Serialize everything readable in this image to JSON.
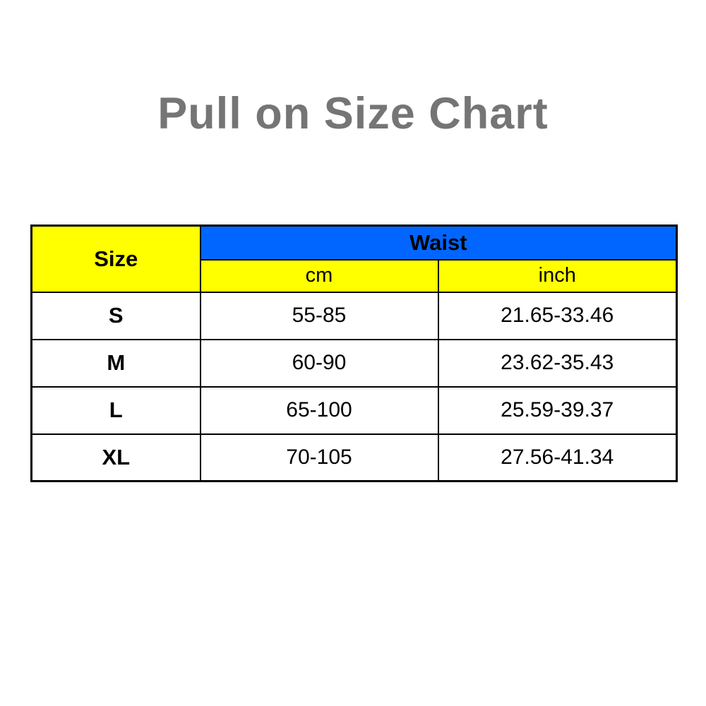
{
  "page": {
    "title": "Pull on Size Chart"
  },
  "colors": {
    "title_gray": "#757575",
    "header_yellow": "#FFFF00",
    "header_blue": "#0066FF",
    "border_black": "#000000",
    "background": "#FFFFFF"
  },
  "table": {
    "size_header": "Size",
    "waist_header": "Waist",
    "unit_cm": "cm",
    "unit_inch": "inch",
    "rows": [
      {
        "size": "S",
        "cm": "55-85",
        "inch": "21.65-33.46"
      },
      {
        "size": "M",
        "cm": "60-90",
        "inch": "23.62-35.43"
      },
      {
        "size": "L",
        "cm": "65-100",
        "inch": "25.59-39.37"
      },
      {
        "size": "XL",
        "cm": "70-105",
        "inch": "27.56-41.34"
      }
    ]
  },
  "chart_data": {
    "type": "table",
    "title": "Pull on Size Chart",
    "columns": [
      "Size",
      "Waist (cm)",
      "Waist (inch)"
    ],
    "rows": [
      [
        "S",
        "55-85",
        "21.65-33.46"
      ],
      [
        "M",
        "60-90",
        "23.62-35.43"
      ],
      [
        "L",
        "65-100",
        "25.59-39.37"
      ],
      [
        "XL",
        "70-105",
        "27.56-41.34"
      ]
    ]
  }
}
